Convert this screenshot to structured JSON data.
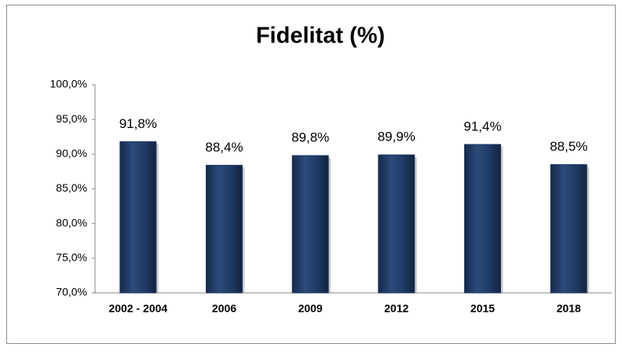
{
  "chart_data": {
    "type": "bar",
    "title": "Fidelitat (%)",
    "categories": [
      "2002 - 2004",
      "2006",
      "2009",
      "2012",
      "2015",
      "2018"
    ],
    "values": [
      91.8,
      88.4,
      89.8,
      89.9,
      91.4,
      88.5
    ],
    "value_labels": [
      "91,8%",
      "88,4%",
      "89,8%",
      "89,9%",
      "91,4%",
      "88,5%"
    ],
    "color": "#1f3a64",
    "ylim": [
      70,
      100
    ],
    "yticks": [
      {
        "value": 70,
        "label": "70,0%"
      },
      {
        "value": 75,
        "label": "75,0%"
      },
      {
        "value": 80,
        "label": "80,0%"
      },
      {
        "value": 85,
        "label": "85,0%"
      },
      {
        "value": 90,
        "label": "90,0%"
      },
      {
        "value": 95,
        "label": "95,0%"
      },
      {
        "value": 100,
        "label": "100,0%"
      }
    ],
    "grid": false
  }
}
